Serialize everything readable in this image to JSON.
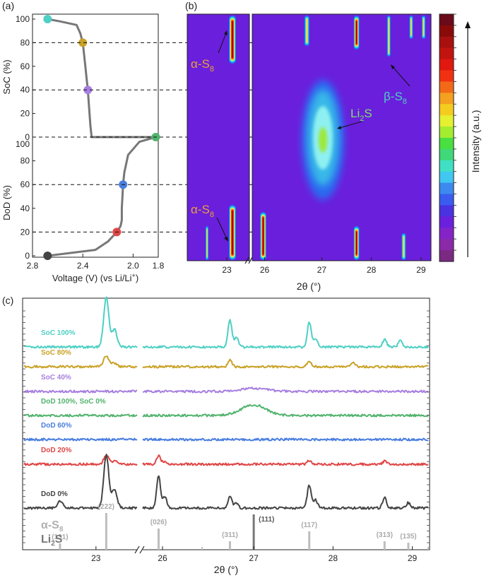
{
  "panels": {
    "a": "(a)",
    "b": "(b)",
    "c": "(c)"
  },
  "panel_a": {
    "xlabel_main": "Voltage (V) (vs Li/Li",
    "xlabel_sup": "+",
    "xlabel_end": ")",
    "soc_label": "SoC (%)",
    "dod_label": "DoD (%)",
    "xticks": [
      "2.8",
      "2.4",
      "2.0",
      "1.8"
    ],
    "soc_ticks": [
      "100",
      "80",
      "60",
      "40",
      "20",
      "0"
    ],
    "dod_ticks": [
      "100",
      "80",
      "60",
      "40",
      "20",
      "0"
    ]
  },
  "panel_b": {
    "xticks": [
      "23",
      "26",
      "27",
      "28",
      "29"
    ],
    "xlabel": "2θ (°)",
    "intensity_label": "Intensity (a.u.)",
    "ann_alpha_top": "α-S",
    "ann_alpha_bot": "α-S",
    "ann_beta": "β-S",
    "ann_li2s": "Li",
    "ann_li2s_tail": "S",
    "sub8": "8",
    "sub2": "2"
  },
  "panel_c": {
    "xticks": [
      "23",
      "26",
      "27",
      "28",
      "29"
    ],
    "xlabel": "2θ (°)",
    "traces": [
      {
        "label": "SoC 100%",
        "color": "#4ed0c4"
      },
      {
        "label": "SoC 80%",
        "color": "#c9a227"
      },
      {
        "label": "SoC 40%",
        "color": "#a77fe0"
      },
      {
        "label": "DoD 100%, SoC 0%",
        "color": "#52b36d"
      },
      {
        "label": "DoD 60%",
        "color": "#4a7ee0"
      },
      {
        "label": "DoD 20%",
        "color": "#e04646"
      },
      {
        "label": "DoD 0%",
        "color": "#444444"
      }
    ],
    "ref_alpha": "α-S",
    "ref_alpha_sub": "8",
    "ref_li2s": "Li",
    "ref_li2s_sub": "2",
    "ref_li2s_tail": "S",
    "ref_hkl": [
      "(131)",
      "(222)",
      "(026)",
      "(311)",
      "(111)",
      "(117)",
      "(313)",
      "(135)"
    ]
  },
  "chart_data": [
    {
      "type": "line",
      "panel": "a",
      "x_axis": "Voltage (V) (vs Li/Li+)",
      "xlim": [
        2.8,
        1.8
      ],
      "voltage_profile_charge_soc": {
        "x": [
          2.68,
          2.58,
          2.45,
          2.42,
          2.4,
          2.39,
          2.38,
          2.37,
          2.36,
          2.35,
          2.34,
          2.33
        ],
        "y": [
          100,
          98,
          95,
          88,
          80,
          70,
          60,
          50,
          40,
          25,
          10,
          0
        ]
      },
      "voltage_profile_discharge_dod": {
        "x": [
          1.82,
          1.95,
          2.04,
          2.07,
          2.08,
          2.09,
          2.09,
          2.1,
          2.13,
          2.2,
          2.3,
          2.68
        ],
        "y": [
          100,
          96,
          85,
          70,
          60,
          40,
          30,
          25,
          20,
          12,
          5,
          0
        ]
      },
      "markers": [
        {
          "label": "SoC 100%",
          "voltage": 2.68,
          "value": 100
        },
        {
          "label": "SoC 80%",
          "voltage": 2.4,
          "value": 80
        },
        {
          "label": "SoC 40%",
          "voltage": 2.36,
          "value": 40
        },
        {
          "label": "DoD 100%, SoC 0%",
          "voltage": 1.82,
          "value": 100
        },
        {
          "label": "DoD 60%",
          "voltage": 2.08,
          "value": 60
        },
        {
          "label": "DoD 20%",
          "voltage": 2.13,
          "value": 20
        },
        {
          "label": "DoD 0%",
          "voltage": 2.68,
          "value": 0
        }
      ]
    },
    {
      "type": "heatmap",
      "panel": "b",
      "x_axis": "2θ (°)",
      "xlim": [
        22.3,
        29.2
      ],
      "axis_break": [
        23.4,
        25.6
      ],
      "rows": [
        "SoC 100%",
        "SoC 80%",
        "SoC 40%",
        "DoD 100%, SoC 0%",
        "DoD 60%",
        "DoD 20%",
        "DoD 0%"
      ],
      "bright_features": [
        {
          "phase": "α-S8",
          "two_theta": 23.1,
          "where": "SoC 100%-80% and DoD 20%-0%"
        },
        {
          "phase": "β-S8",
          "two_theta": 28.35,
          "where": "SoC 100%-80%"
        },
        {
          "phase": "Li2S",
          "two_theta": 27.0,
          "where": "SoC 40% to DoD 60%, maximum at DoD 100%"
        }
      ]
    },
    {
      "type": "line",
      "panel": "c",
      "x_axis": "2θ (°)",
      "xlim": [
        22.3,
        29.2
      ],
      "axis_break": [
        23.4,
        25.6
      ],
      "series_peaks": [
        {
          "name": "SoC 100%",
          "peaks": [
            [
              23.1,
              1.0
            ],
            [
              26.7,
              0.55
            ],
            [
              27.7,
              0.5
            ],
            [
              28.65,
              0.15
            ],
            [
              28.85,
              0.15
            ]
          ]
        },
        {
          "name": "SoC 80%",
          "peaks": [
            [
              23.1,
              0.4
            ],
            [
              26.7,
              0.25
            ],
            [
              27.7,
              0.2
            ],
            [
              28.25,
              0.15
            ]
          ]
        },
        {
          "name": "SoC 40%",
          "peaks": [
            [
              27.0,
              0.15
            ]
          ]
        },
        {
          "name": "DoD 100%, SoC 0%",
          "peaks": [
            [
              27.0,
              0.5
            ]
          ]
        },
        {
          "name": "DoD 60%",
          "peaks": []
        },
        {
          "name": "DoD 20%",
          "peaks": [
            [
              23.1,
              0.45
            ],
            [
              25.8,
              0.45
            ],
            [
              27.7,
              0.2
            ],
            [
              28.65,
              0.15
            ]
          ]
        },
        {
          "name": "DoD 0%",
          "peaks": [
            [
              22.65,
              0.2
            ],
            [
              23.1,
              1.5
            ],
            [
              25.8,
              0.9
            ],
            [
              26.7,
              0.35
            ],
            [
              27.7,
              0.65
            ],
            [
              28.65,
              0.3
            ],
            [
              28.95,
              0.15
            ]
          ]
        }
      ],
      "reference_alpha_s8": [
        {
          "hkl": "(131)",
          "two_theta": 22.65
        },
        {
          "hkl": "(222)",
          "two_theta": 23.1
        },
        {
          "hkl": "(026)",
          "two_theta": 25.8
        },
        {
          "hkl": "(311)",
          "two_theta": 26.7
        },
        {
          "hkl": "(117)",
          "two_theta": 27.7
        },
        {
          "hkl": "(313)",
          "two_theta": 28.65
        },
        {
          "hkl": "(135)",
          "two_theta": 28.95
        }
      ],
      "reference_li2s": [
        {
          "hkl": "(111)",
          "two_theta": 27.0
        }
      ]
    }
  ]
}
